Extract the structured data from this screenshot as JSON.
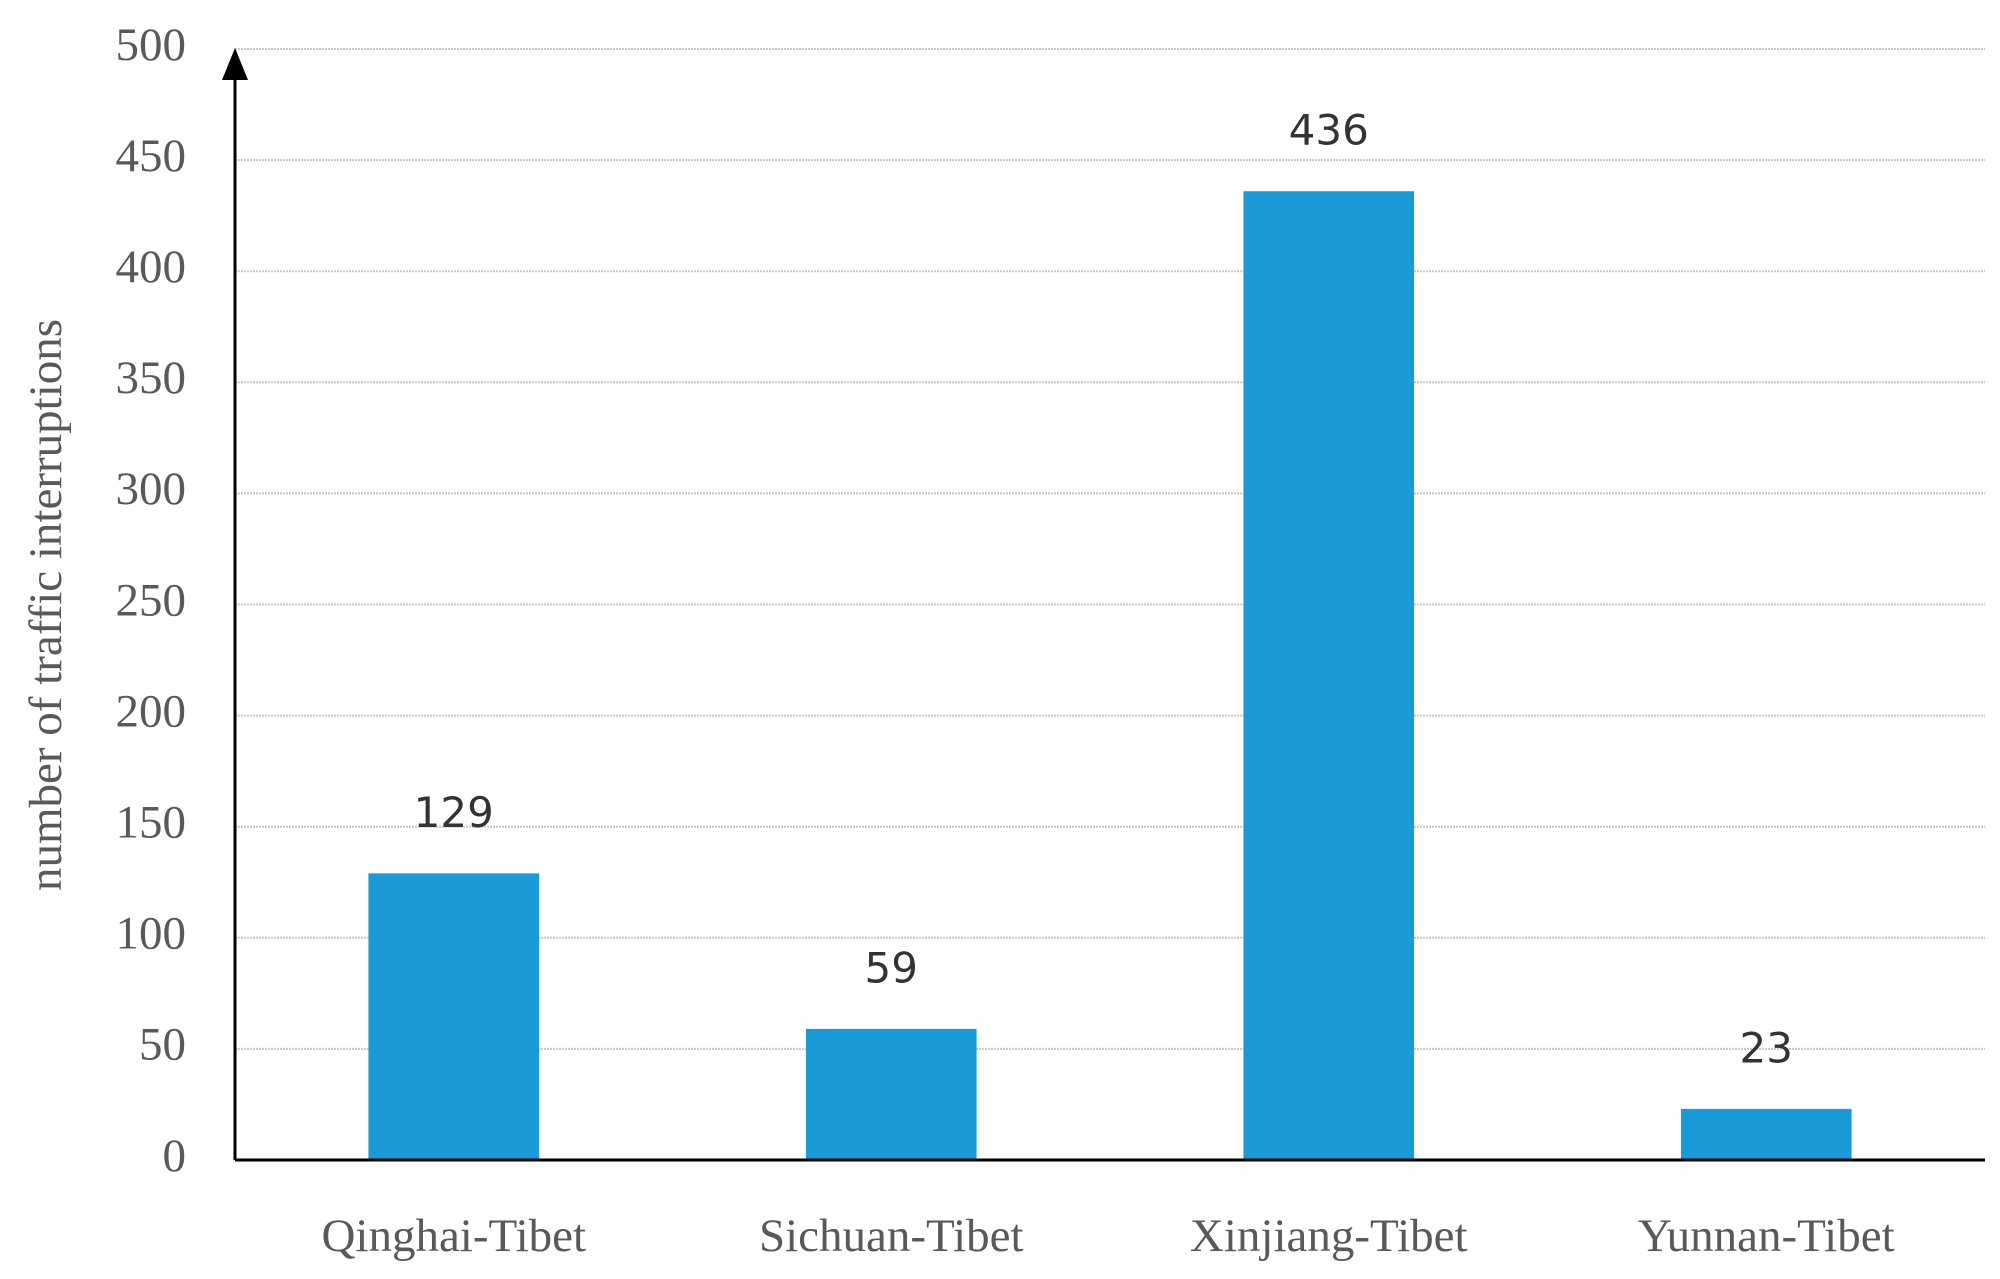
{
  "chart_data": {
    "type": "bar",
    "y_label": "number of traffic interruptions",
    "categories": [
      "Qinghai-Tibet",
      "Sichuan-Tibet",
      "Xinjiang-Tibet",
      "Yunnan-Tibet"
    ],
    "values": [
      129,
      59,
      436,
      23
    ],
    "color": "#1a9ad6",
    "ylim": [
      0,
      500
    ],
    "yticks": [
      0,
      50,
      100,
      150,
      200,
      250,
      300,
      350,
      400,
      450,
      500
    ],
    "grid": true
  }
}
